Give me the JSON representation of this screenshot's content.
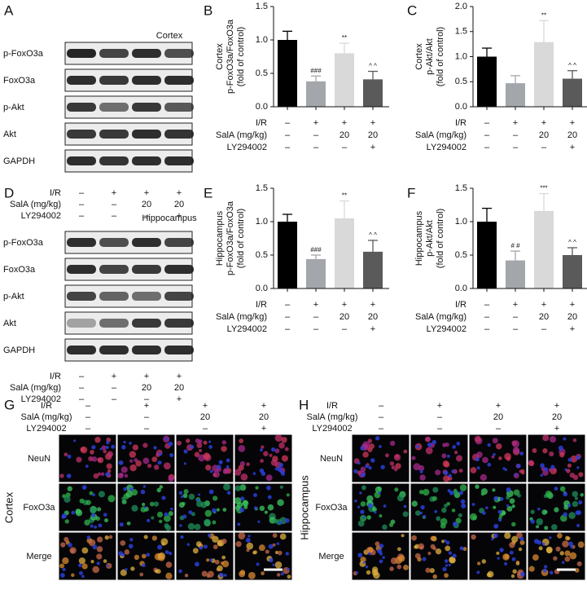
{
  "chart_data": [
    {
      "type": "bar",
      "panel": "B",
      "y_label": [
        "Cortex",
        "p-FoxO3a/FoxO3a",
        "(fold of control)"
      ],
      "values": [
        1.0,
        0.38,
        0.8,
        0.41
      ],
      "errors": [
        0.13,
        0.08,
        0.15,
        0.12
      ],
      "annotations": [
        null,
        "###",
        "**",
        "^ ^"
      ],
      "colors": [
        "#000000",
        "#a3a6aa",
        "#d9d9d9",
        "#5a5a5a"
      ],
      "ylim": [
        0,
        1.5
      ],
      "yticks": [
        {
          "value": 0,
          "label": "0.0"
        },
        0.5,
        {
          "value": 1,
          "label": "1.0"
        },
        1.5
      ],
      "conditions": [
        {
          "label": "I/R",
          "cells": [
            "–",
            "+",
            "+",
            "+"
          ]
        },
        {
          "label": "SalA (mg/kg)",
          "cells": [
            "–",
            "–",
            "20",
            "20"
          ]
        },
        {
          "label": "LY294002",
          "cells": [
            "–",
            "–",
            "–",
            "+"
          ]
        }
      ]
    },
    {
      "type": "bar",
      "panel": "C",
      "y_label": [
        "Cortex",
        "p-Akt/Akt",
        "(fold of control)"
      ],
      "values": [
        1.0,
        0.47,
        1.29,
        0.56
      ],
      "errors": [
        0.17,
        0.15,
        0.43,
        0.16
      ],
      "annotations": [
        null,
        null,
        "**",
        "^ ^"
      ],
      "colors": [
        "#000000",
        "#a3a6aa",
        "#d9d9d9",
        "#5a5a5a"
      ],
      "ylim": [
        0,
        2
      ],
      "yticks": [
        {
          "value": 0,
          "label": "0.0"
        },
        0.5,
        {
          "value": 1,
          "label": "1.0"
        },
        1.5,
        {
          "value": 2,
          "label": "2.0"
        }
      ],
      "conditions": [
        {
          "label": "I/R",
          "cells": [
            "–",
            "+",
            "+",
            "+"
          ]
        },
        {
          "label": "SalA (mg/kg)",
          "cells": [
            "–",
            "–",
            "20",
            "20"
          ]
        },
        {
          "label": "LY294002",
          "cells": [
            "–",
            "–",
            "–",
            "+"
          ]
        }
      ]
    },
    {
      "type": "bar",
      "panel": "E",
      "y_label": [
        "Hippocampus",
        "p-FoxO3a/FoxO3a",
        "(fold of control)"
      ],
      "values": [
        1.0,
        0.44,
        1.05,
        0.55
      ],
      "errors": [
        0.11,
        0.06,
        0.26,
        0.17
      ],
      "annotations": [
        null,
        "###",
        "**",
        "^ ^"
      ],
      "colors": [
        "#000000",
        "#a3a6aa",
        "#d9d9d9",
        "#5a5a5a"
      ],
      "ylim": [
        0,
        1.5
      ],
      "yticks": [
        {
          "value": 0,
          "label": "0.0"
        },
        0.5,
        {
          "value": 1,
          "label": "1.0"
        },
        1.5
      ],
      "conditions": [
        {
          "label": "I/R",
          "cells": [
            "–",
            "+",
            "+",
            "+"
          ]
        },
        {
          "label": "SalA (mg/kg)",
          "cells": [
            "–",
            "–",
            "20",
            "20"
          ]
        },
        {
          "label": "LY294002",
          "cells": [
            "–",
            "–",
            "–",
            "+"
          ]
        }
      ]
    },
    {
      "type": "bar",
      "panel": "F",
      "y_label": [
        "Hippocampus",
        "p-Akt/Akt",
        "(fold of control)"
      ],
      "values": [
        1.0,
        0.42,
        1.16,
        0.5
      ],
      "errors": [
        0.2,
        0.14,
        0.26,
        0.11
      ],
      "annotations": [
        null,
        "# #",
        "***",
        "^ ^"
      ],
      "colors": [
        "#000000",
        "#a3a6aa",
        "#d9d9d9",
        "#5a5a5a"
      ],
      "ylim": [
        0,
        1.5
      ],
      "yticks": [
        {
          "value": 0,
          "label": "0.0"
        },
        0.5,
        {
          "value": 1,
          "label": "1.0"
        },
        1.5
      ],
      "conditions": [
        {
          "label": "I/R",
          "cells": [
            "–",
            "+",
            "+",
            "+"
          ]
        },
        {
          "label": "SalA (mg/kg)",
          "cells": [
            "–",
            "–",
            "20",
            "20"
          ]
        },
        {
          "label": "LY294002",
          "cells": [
            "–",
            "–",
            "–",
            "+"
          ]
        }
      ]
    }
  ],
  "blots": [
    {
      "panel": "A",
      "title": "Cortex",
      "rows": [
        "p-FoxO3a",
        "FoxO3a",
        "p-Akt",
        "Akt",
        "GAPDH"
      ],
      "conditions": [
        {
          "label": "I/R",
          "cells": [
            "–",
            "+",
            "+",
            "+"
          ]
        },
        {
          "label": "SalA (mg/kg)",
          "cells": [
            "–",
            "–",
            "20",
            "20"
          ]
        },
        {
          "label": "LY294002",
          "cells": [
            "–",
            "–",
            "–",
            "+"
          ]
        }
      ]
    },
    {
      "panel": "D",
      "title": "Hippocampus",
      "rows": [
        "p-FoxO3a",
        "FoxO3a",
        "p-Akt",
        "Akt",
        "GAPDH"
      ],
      "conditions": [
        {
          "label": "I/R",
          "cells": [
            "–",
            "+",
            "+",
            "+"
          ]
        },
        {
          "label": "SalA (mg/kg)",
          "cells": [
            "–",
            "–",
            "20",
            "20"
          ]
        },
        {
          "label": "LY294002",
          "cells": [
            "–",
            "–",
            "–",
            "+"
          ]
        }
      ]
    }
  ],
  "micrographs": [
    {
      "panel": "G",
      "region": "Cortex",
      "channels": [
        "NeuN",
        "FoxO3a",
        "Merge"
      ],
      "conditions": [
        {
          "label": "I/R",
          "cells": [
            "–",
            "+",
            "+",
            "+"
          ]
        },
        {
          "label": "SalA (mg/kg)",
          "cells": [
            "–",
            "–",
            "20",
            "20"
          ]
        },
        {
          "label": "LY294002",
          "cells": [
            "–",
            "–",
            "–",
            "+"
          ]
        }
      ]
    },
    {
      "panel": "H",
      "region": "Hippocampus",
      "channels": [
        "NeuN",
        "FoxO3a",
        "Merge"
      ],
      "conditions": [
        {
          "label": "I/R",
          "cells": [
            "–",
            "+",
            "+",
            "+"
          ]
        },
        {
          "label": "SalA (mg/kg)",
          "cells": [
            "–",
            "–",
            "20",
            "20"
          ]
        },
        {
          "label": "LY294002",
          "cells": [
            "–",
            "–",
            "–",
            "+"
          ]
        }
      ]
    }
  ]
}
